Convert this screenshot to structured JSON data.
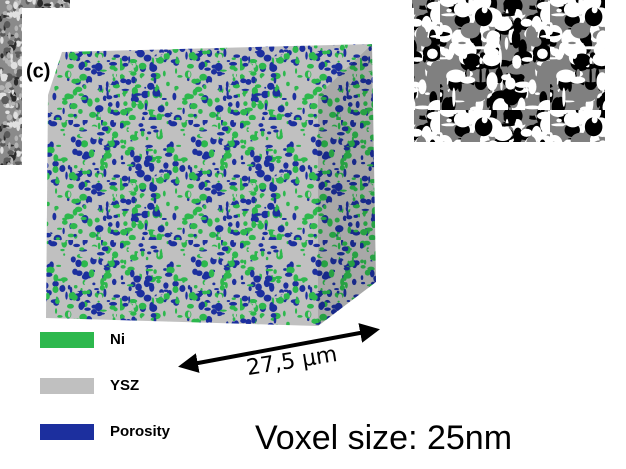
{
  "panel_label": "(c)",
  "legend": [
    {
      "label": "Ni",
      "color": "#2db84d"
    },
    {
      "label": "YSZ",
      "color": "#c0c0c0"
    },
    {
      "label": "Porosity",
      "color": "#1c2f9e"
    }
  ],
  "dimension": "27,5 μm",
  "caption": "Voxel size: 25nm"
}
